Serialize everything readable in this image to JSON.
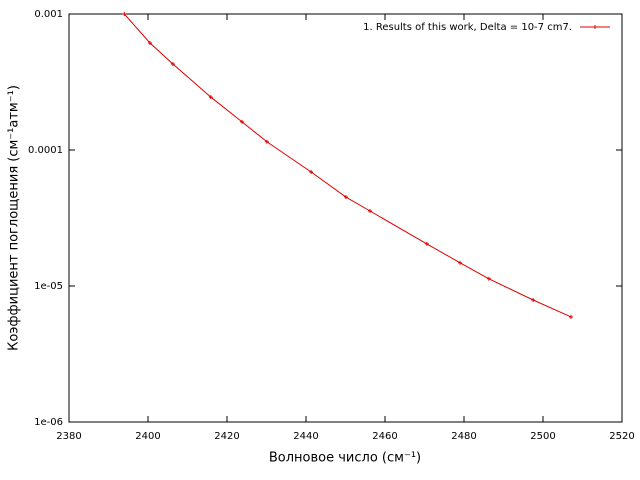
{
  "chart_data": {
    "type": "line",
    "xlabel": "Волновое число (см⁻¹)",
    "ylabel": "Коэффициент поглощения (см⁻¹атм⁻¹)",
    "x": [
      2394,
      2400.5,
      2406.3,
      2415.9,
      2423.8,
      2430.1,
      2441.3,
      2450.1,
      2456.2,
      2470.6,
      2479.0,
      2486.3,
      2497.5,
      2507.1
    ],
    "series": [
      {
        "name": "1. Results of this work, Delta = 10-7 cm7.",
        "color": "#e00000",
        "values": [
          0.001,
          0.000612,
          0.000429,
          0.000245,
          0.000161,
          0.000115,
          6.89e-05,
          4.51e-05,
          3.56e-05,
          2.04e-05,
          1.48e-05,
          1.13e-05,
          7.89e-06,
          5.92e-06
        ]
      }
    ],
    "xlim": [
      2380,
      2520
    ],
    "xticks": [
      2380,
      2400,
      2420,
      2440,
      2460,
      2480,
      2500,
      2520
    ],
    "ylim": [
      1e-06,
      0.001
    ],
    "log_y": true,
    "yticks": [
      0.001,
      0.0001,
      {
        "value": 1e-05,
        "label": "1e-05"
      },
      {
        "value": 1e-06,
        "label": "1e-06"
      }
    ],
    "legend": "top-right"
  }
}
